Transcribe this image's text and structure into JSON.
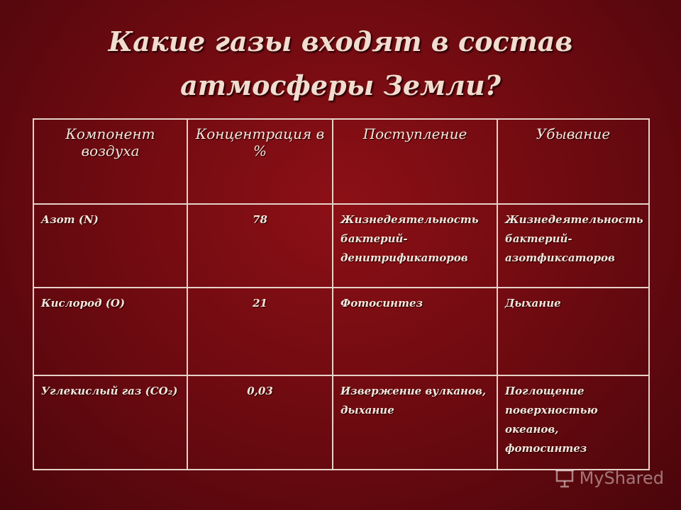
{
  "title": "Какие газы входят в состав атмосферы Земли?",
  "table": {
    "headers": [
      "Компонент воздуха",
      "Концентрация в %",
      "Поступление",
      "Убывание"
    ],
    "rows": [
      {
        "component": "Азот (N)",
        "concentration": "78",
        "income": "Жизнедеятельность бактерий-денитрификаторов",
        "outflow": "Жизнедеятельность бактерий-азотфиксаторов"
      },
      {
        "component": "Кислород (O)",
        "concentration": "21",
        "income": "Фотосинтез",
        "outflow": "Дыхание"
      },
      {
        "component": "Углекислый газ (CO₂)",
        "concentration": "0,03",
        "income": "Извержение вулканов, дыхание",
        "outflow": "Поглощение поверхностью океанов, фотосинтез"
      }
    ]
  },
  "watermark": {
    "text": "MyShared",
    "icon": "presentation-board-icon"
  }
}
